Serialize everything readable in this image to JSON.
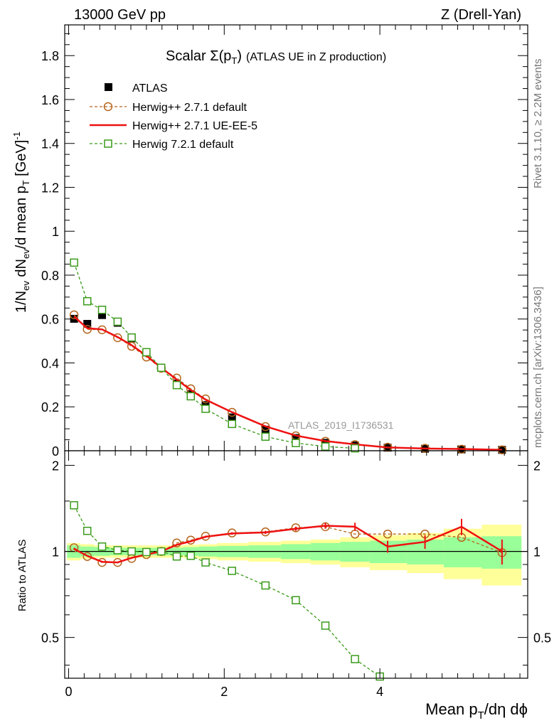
{
  "header": {
    "energy": "13000 GeV pp",
    "process": "Z (Drell-Yan)"
  },
  "side_text": {
    "rivet": "Rivet 3.1.10, ≥ 2.2M events",
    "mcplots": "mcplots.cern.ch [arXiv:1306.3436]"
  },
  "chart_data": [
    {
      "panel": "main",
      "type": "line",
      "title_main": "Scalar Σ(p",
      "title_sub": "T",
      "title_close": ")",
      "title_rest": "(ATLAS UE in Z production)",
      "ylabel": "1/N_ev dN_ev/d mean p_T [GeV]^-1",
      "ylabel_parts": {
        "a": "1/N",
        "a_sub": "ev",
        "b": " dN",
        "b_sub": "ev",
        "c": "/d mean p",
        "c_sub": "T",
        "d": " [GeV]",
        "d_sup": "-1"
      },
      "xlim": [
        -0.05,
        5.9
      ],
      "ylim": [
        0,
        1.94
      ],
      "yticks": [
        0,
        0.2,
        0.4,
        0.6,
        0.8,
        1.0,
        1.2,
        1.4,
        1.6,
        1.8
      ],
      "ytick_labels": [
        "0",
        "0.2",
        "0.4",
        "0.6",
        "0.8",
        "1",
        "1.2",
        "1.4",
        "1.6",
        "1.8"
      ],
      "watermark": "ATLAS_2019_I1736531",
      "legend": [
        "ATLAS",
        "Herwig++ 2.7.1 default",
        "Herwig++ 2.7.1 UE-EE-5",
        "Herwig 7.2.1 default"
      ],
      "series": [
        {
          "name": "ATLAS",
          "x": [
            0.07,
            0.24,
            0.43,
            0.63,
            0.81,
            1.0,
            1.19,
            1.39,
            1.57,
            1.76,
            2.1,
            2.53,
            2.92,
            3.3,
            3.68,
            4.1,
            4.58,
            5.05,
            5.57
          ],
          "y": [
            0.601,
            0.578,
            0.618,
            0.583,
            0.512,
            0.448,
            0.378,
            0.306,
            0.258,
            0.208,
            0.152,
            0.096,
            0.058,
            0.036,
            0.024,
            0.014,
            0.009,
            0.006,
            0.004
          ]
        },
        {
          "name": "Herwig++ 2.7.1 default",
          "x": [
            0.07,
            0.24,
            0.43,
            0.63,
            0.81,
            1.0,
            1.19,
            1.39,
            1.57,
            1.76,
            2.1,
            2.53,
            2.92,
            3.3,
            3.68,
            4.1,
            4.58,
            5.05,
            5.57
          ],
          "y": [
            0.619,
            0.553,
            0.551,
            0.515,
            0.476,
            0.427,
            0.376,
            0.331,
            0.282,
            0.236,
            0.175,
            0.11,
            0.068,
            0.043,
            0.028,
            0.016,
            0.011,
            0.007,
            0.004
          ]
        },
        {
          "name": "Herwig++ 2.7.1 UE-EE-5",
          "x": [
            0.07,
            0.24,
            0.43,
            0.63,
            0.81,
            1.0,
            1.19,
            1.39,
            1.57,
            1.76,
            2.1,
            2.53,
            2.92,
            3.3,
            3.68,
            4.1,
            4.58,
            5.05,
            5.57
          ],
          "y": [
            0.611,
            0.558,
            0.553,
            0.518,
            0.481,
            0.433,
            0.378,
            0.324,
            0.277,
            0.233,
            0.176,
            0.111,
            0.069,
            0.044,
            0.029,
            0.015,
            0.01,
            0.008,
            0.004
          ]
        },
        {
          "name": "Herwig 7.2.1 default",
          "x": [
            0.07,
            0.24,
            0.43,
            0.63,
            0.81,
            1.0,
            1.19,
            1.39,
            1.57,
            1.76,
            2.1,
            2.53,
            2.92,
            3.3,
            3.68
          ],
          "y": [
            0.857,
            0.681,
            0.642,
            0.588,
            0.516,
            0.449,
            0.378,
            0.299,
            0.248,
            0.191,
            0.122,
            0.064,
            0.035,
            0.019,
            0.011
          ]
        }
      ]
    },
    {
      "panel": "ratio",
      "type": "line",
      "ylabel": "Ratio to ATLAS",
      "xlabel_parts": {
        "a": "Mean p",
        "a_sub": "T",
        "b": "/dη dϕ"
      },
      "xlim": [
        -0.05,
        5.9
      ],
      "ylim": [
        0.36,
        2.25
      ],
      "yscale": "log",
      "yticks": [
        0.5,
        1,
        2
      ],
      "ytick_labels": [
        "0.5",
        "1",
        "2"
      ],
      "xticks": [
        0,
        2,
        4
      ],
      "xtick_labels": [
        "0",
        "2",
        "4"
      ],
      "bands": {
        "edges": [
          -0.02,
          0.15,
          0.33,
          0.53,
          0.72,
          0.91,
          1.09,
          1.29,
          1.48,
          1.67,
          1.91,
          2.31,
          2.73,
          3.11,
          3.49,
          3.87,
          4.35,
          4.82,
          5.31,
          5.82
        ],
        "green": [
          0.05,
          0.04,
          0.035,
          0.03,
          0.03,
          0.03,
          0.03,
          0.03,
          0.035,
          0.04,
          0.045,
          0.05,
          0.06,
          0.07,
          0.08,
          0.09,
          0.1,
          0.12,
          0.13
        ],
        "yellow": [
          0.07,
          0.06,
          0.05,
          0.05,
          0.05,
          0.05,
          0.05,
          0.05,
          0.055,
          0.06,
          0.07,
          0.08,
          0.09,
          0.1,
          0.12,
          0.14,
          0.16,
          0.2,
          0.24
        ]
      },
      "series": [
        {
          "name": "Herwig++ 2.7.1 default",
          "x": [
            0.07,
            0.24,
            0.43,
            0.63,
            0.81,
            1.0,
            1.19,
            1.39,
            1.57,
            1.76,
            2.1,
            2.53,
            2.92,
            3.3,
            3.68,
            4.1,
            4.58,
            5.05,
            5.57
          ],
          "y": [
            1.03,
            0.96,
            0.915,
            0.915,
            0.945,
            0.975,
            1.0,
            1.07,
            1.095,
            1.13,
            1.16,
            1.17,
            1.21,
            1.22,
            1.15,
            1.15,
            1.15,
            1.12,
            0.99
          ]
        },
        {
          "name": "Herwig++ 2.7.1 UE-EE-5",
          "x": [
            0.07,
            0.24,
            0.43,
            0.63,
            0.81,
            1.0,
            1.19,
            1.39,
            1.57,
            1.76,
            2.1,
            2.53,
            2.92,
            3.3,
            3.68,
            4.1,
            4.58,
            5.05,
            5.57
          ],
          "y": [
            1.02,
            0.965,
            0.92,
            0.915,
            0.95,
            0.975,
            1.0,
            1.055,
            1.085,
            1.125,
            1.155,
            1.165,
            1.2,
            1.23,
            1.22,
            1.04,
            1.08,
            1.22,
            1.0
          ],
          "err": [
            0.005,
            0.005,
            0.005,
            0.005,
            0.005,
            0.005,
            0.006,
            0.006,
            0.008,
            0.01,
            0.012,
            0.015,
            0.02,
            0.03,
            0.04,
            0.05,
            0.06,
            0.08,
            0.1
          ]
        },
        {
          "name": "Herwig 7.2.1 default",
          "x": [
            0.07,
            0.24,
            0.43,
            0.63,
            0.81,
            1.0,
            1.19,
            1.39,
            1.57,
            1.76,
            2.1,
            2.53,
            2.92,
            3.3,
            3.68,
            4.0
          ],
          "y": [
            1.45,
            1.18,
            1.04,
            1.01,
            1.0,
            0.995,
            1.0,
            0.96,
            0.965,
            0.915,
            0.855,
            0.76,
            0.675,
            0.55,
            0.42,
            0.365
          ]
        }
      ]
    }
  ]
}
